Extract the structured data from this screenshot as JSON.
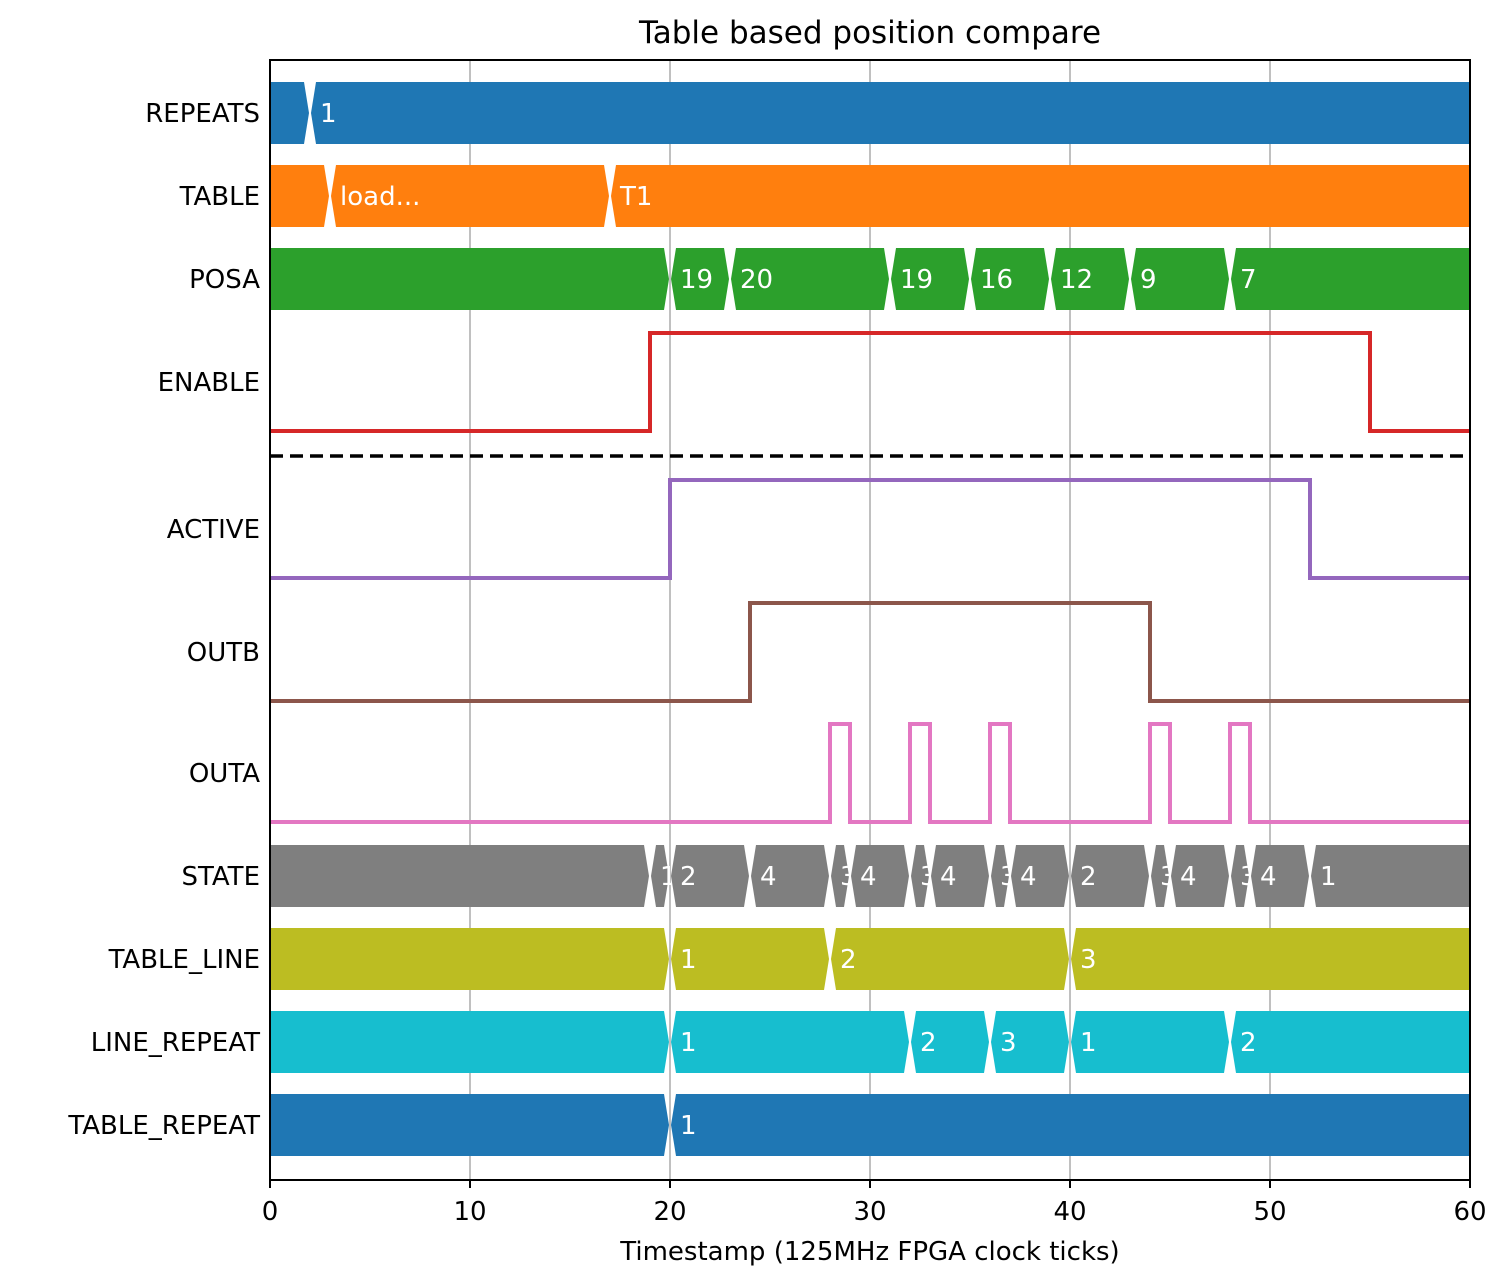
{
  "chart_data": {
    "type": "timing-diagram",
    "title": "Table based position compare",
    "xlabel": "Timestamp (125MHz FPGA clock ticks)",
    "ylabel": "",
    "xlim": [
      0,
      60
    ],
    "xticks": [
      0,
      10,
      20,
      30,
      40,
      50,
      60
    ],
    "grid": "x",
    "separator_after_row": "ENABLE",
    "rows": [
      {
        "name": "REPEATS",
        "kind": "bus",
        "color": "#1f77b4",
        "segments": [
          {
            "t": 0,
            "v": ""
          },
          {
            "t": 2,
            "v": "1"
          }
        ]
      },
      {
        "name": "TABLE",
        "kind": "bus",
        "color": "#ff7f0e",
        "segments": [
          {
            "t": 0,
            "v": ""
          },
          {
            "t": 3,
            "v": "load..."
          },
          {
            "t": 17,
            "v": "T1"
          }
        ]
      },
      {
        "name": "POSA",
        "kind": "bus",
        "color": "#2ca02c",
        "segments": [
          {
            "t": 0,
            "v": ""
          },
          {
            "t": 20,
            "v": "19"
          },
          {
            "t": 23,
            "v": "20"
          },
          {
            "t": 31,
            "v": "19"
          },
          {
            "t": 35,
            "v": "16"
          },
          {
            "t": 39,
            "v": "12"
          },
          {
            "t": 43,
            "v": "9"
          },
          {
            "t": 48,
            "v": "7"
          }
        ]
      },
      {
        "name": "ENABLE",
        "kind": "bit",
        "color": "#d62728",
        "edges": [
          {
            "t": 0,
            "v": 0
          },
          {
            "t": 19,
            "v": 1
          },
          {
            "t": 55,
            "v": 0
          }
        ]
      },
      {
        "name": "ACTIVE",
        "kind": "bit",
        "color": "#9467bd",
        "edges": [
          {
            "t": 0,
            "v": 0
          },
          {
            "t": 20,
            "v": 1
          },
          {
            "t": 52,
            "v": 0
          }
        ]
      },
      {
        "name": "OUTB",
        "kind": "bit",
        "color": "#8c564b",
        "edges": [
          {
            "t": 0,
            "v": 0
          },
          {
            "t": 24,
            "v": 1
          },
          {
            "t": 44,
            "v": 0
          }
        ]
      },
      {
        "name": "OUTA",
        "kind": "bit",
        "color": "#e377c2",
        "edges": [
          {
            "t": 0,
            "v": 0
          },
          {
            "t": 28,
            "v": 1
          },
          {
            "t": 29,
            "v": 0
          },
          {
            "t": 32,
            "v": 1
          },
          {
            "t": 33,
            "v": 0
          },
          {
            "t": 36,
            "v": 1
          },
          {
            "t": 37,
            "v": 0
          },
          {
            "t": 44,
            "v": 1
          },
          {
            "t": 45,
            "v": 0
          },
          {
            "t": 48,
            "v": 1
          },
          {
            "t": 49,
            "v": 0
          }
        ]
      },
      {
        "name": "STATE",
        "kind": "bus",
        "color": "#7f7f7f",
        "segments": [
          {
            "t": 0,
            "v": ""
          },
          {
            "t": 19,
            "v": "1"
          },
          {
            "t": 20,
            "v": "2"
          },
          {
            "t": 24,
            "v": "4"
          },
          {
            "t": 28,
            "v": "3"
          },
          {
            "t": 29,
            "v": "4"
          },
          {
            "t": 32,
            "v": "3"
          },
          {
            "t": 33,
            "v": "4"
          },
          {
            "t": 36,
            "v": "3"
          },
          {
            "t": 37,
            "v": "4"
          },
          {
            "t": 40,
            "v": "2"
          },
          {
            "t": 44,
            "v": "3"
          },
          {
            "t": 45,
            "v": "4"
          },
          {
            "t": 48,
            "v": "3"
          },
          {
            "t": 49,
            "v": "4"
          },
          {
            "t": 52,
            "v": "1"
          }
        ]
      },
      {
        "name": "TABLE_LINE",
        "kind": "bus",
        "color": "#bcbd22",
        "segments": [
          {
            "t": 0,
            "v": ""
          },
          {
            "t": 20,
            "v": "1"
          },
          {
            "t": 28,
            "v": "2"
          },
          {
            "t": 40,
            "v": "3"
          }
        ]
      },
      {
        "name": "LINE_REPEAT",
        "kind": "bus",
        "color": "#17becf",
        "segments": [
          {
            "t": 0,
            "v": ""
          },
          {
            "t": 20,
            "v": "1"
          },
          {
            "t": 32,
            "v": "2"
          },
          {
            "t": 36,
            "v": "3"
          },
          {
            "t": 40,
            "v": "1"
          },
          {
            "t": 48,
            "v": "2"
          }
        ]
      },
      {
        "name": "TABLE_REPEAT",
        "kind": "bus",
        "color": "#1f77b4",
        "segments": [
          {
            "t": 0,
            "v": ""
          },
          {
            "t": 20,
            "v": "1"
          }
        ]
      }
    ]
  }
}
